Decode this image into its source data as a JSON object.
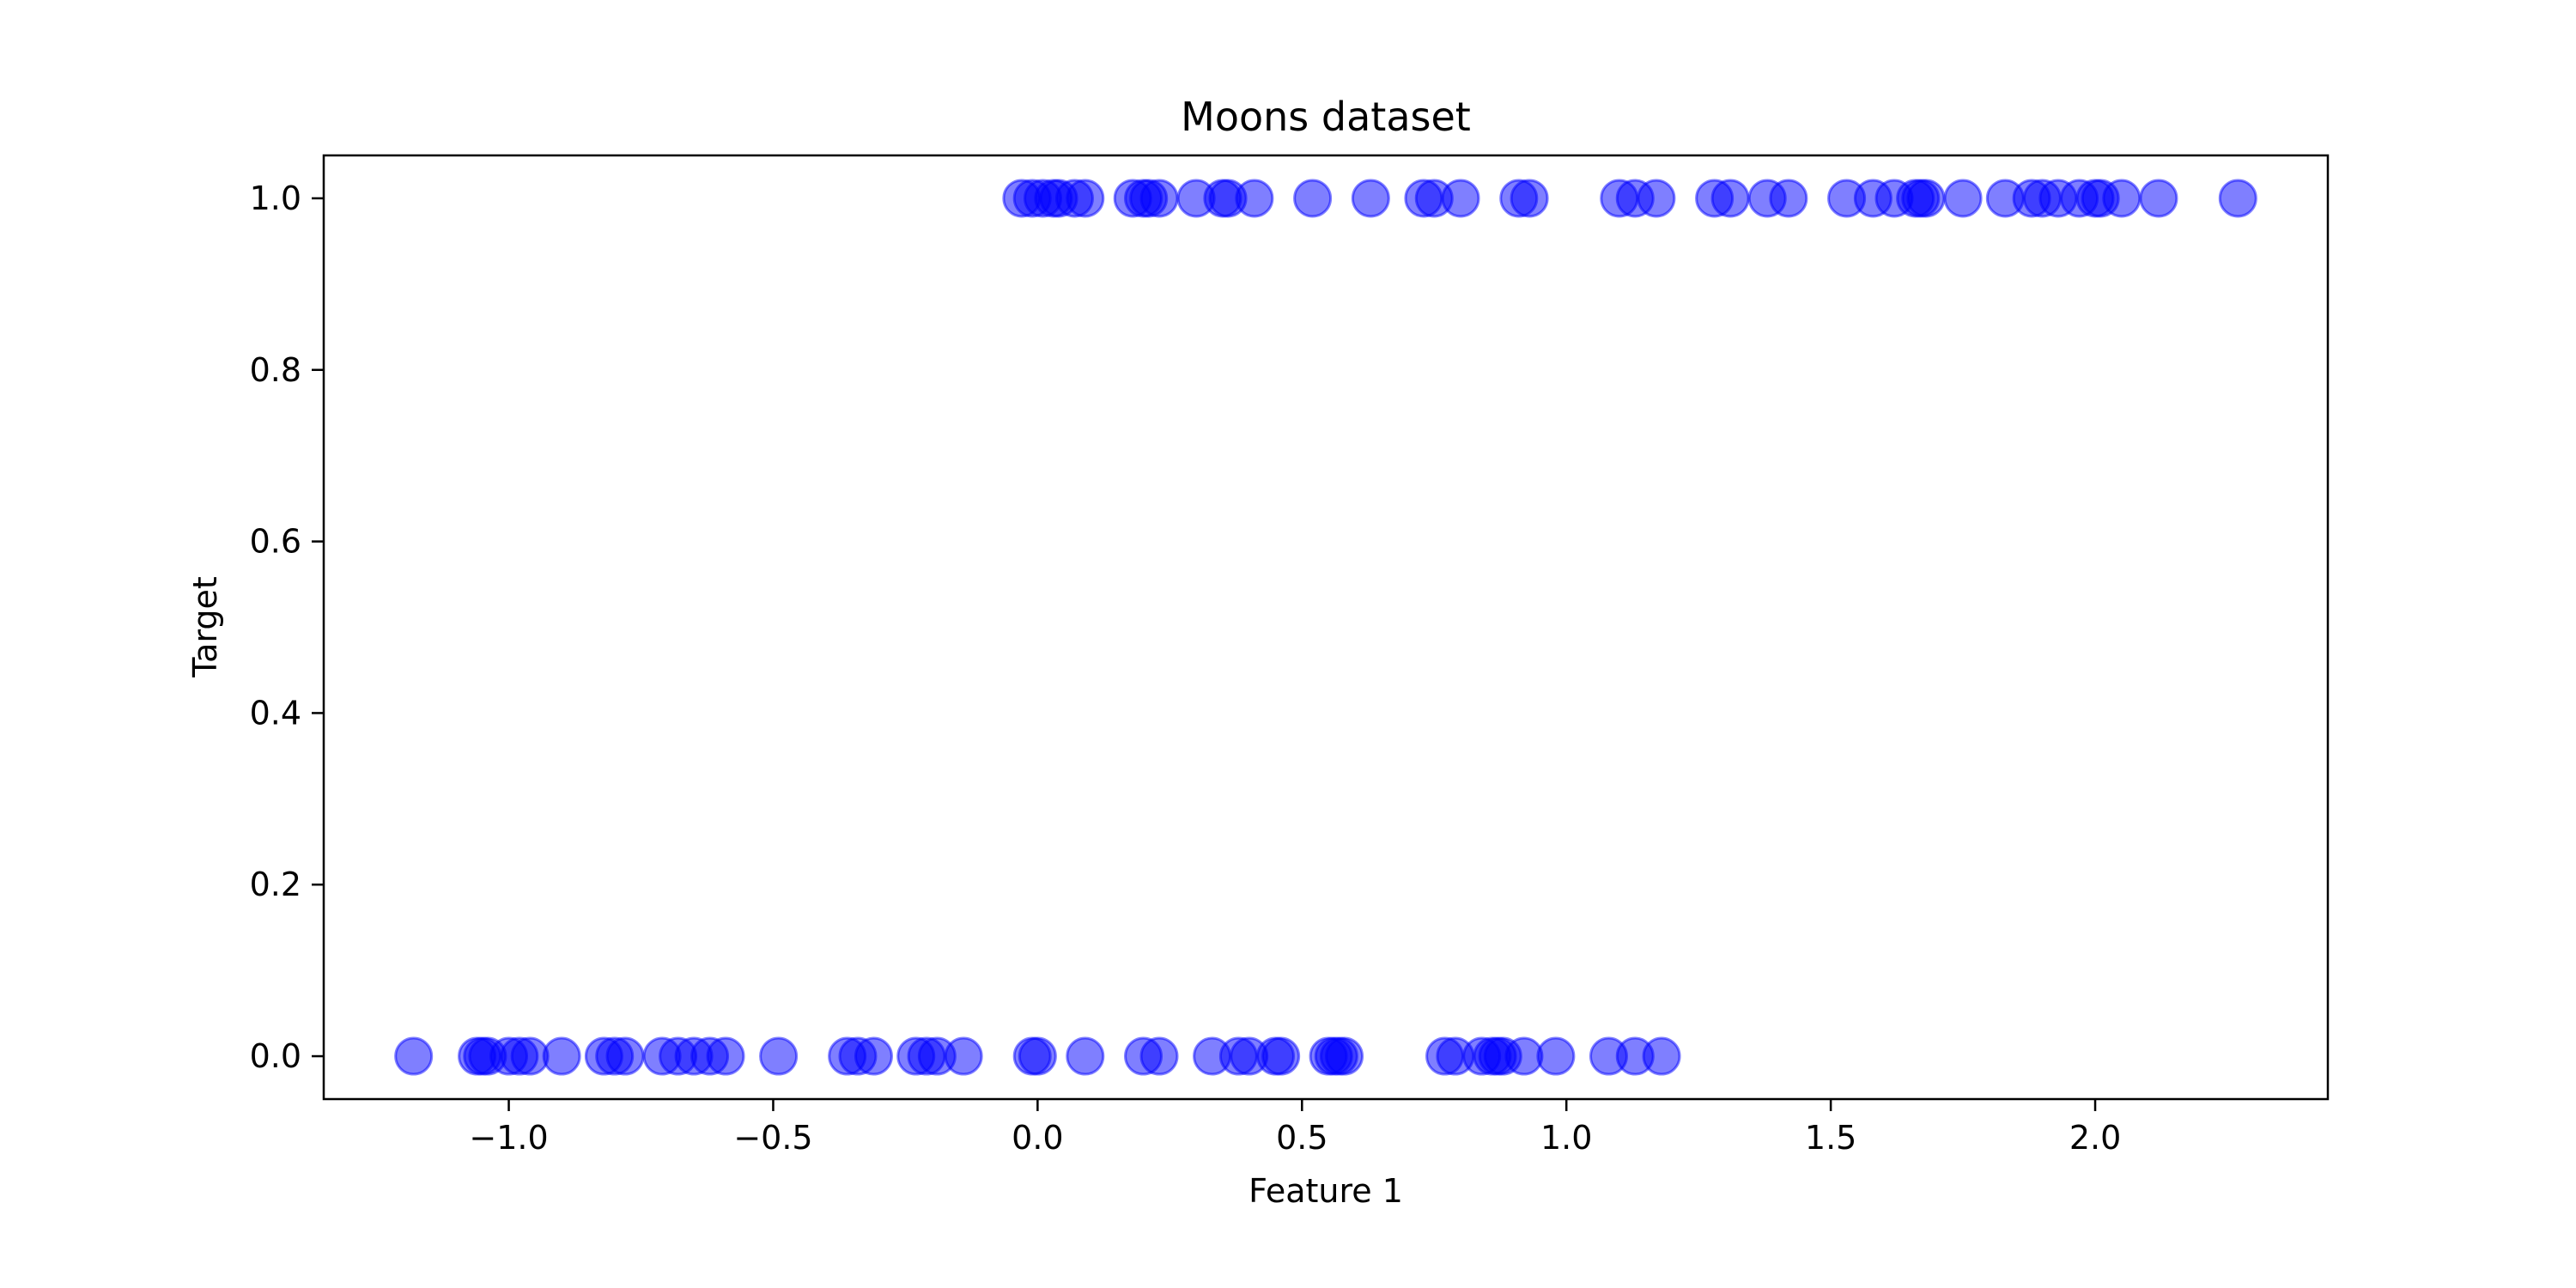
{
  "chart_data": {
    "type": "scatter",
    "title": "Moons dataset",
    "xlabel": "Feature 1",
    "ylabel": "Target",
    "xlim": [
      -1.35,
      2.44
    ],
    "ylim": [
      -0.05,
      1.05
    ],
    "xticks": [
      -1.0,
      -0.5,
      0.0,
      0.5,
      1.0,
      1.5,
      2.0
    ],
    "xtick_labels": [
      "−1.0",
      "−0.5",
      "0.0",
      "0.5",
      "1.0",
      "1.5",
      "2.0"
    ],
    "yticks": [
      0.0,
      0.2,
      0.4,
      0.6,
      0.8,
      1.0
    ],
    "ytick_labels": [
      "0.0",
      "0.2",
      "0.4",
      "0.6",
      "0.8",
      "1.0"
    ],
    "grid": false,
    "marker_color": "#0000ff",
    "marker_alpha": 0.5,
    "series": [
      {
        "values": [
          {
            "x": -0.03,
            "y": 1
          },
          {
            "x": -0.01,
            "y": 1
          },
          {
            "x": 0.01,
            "y": 1
          },
          {
            "x": 0.03,
            "y": 1
          },
          {
            "x": 0.04,
            "y": 1
          },
          {
            "x": 0.07,
            "y": 1
          },
          {
            "x": 0.09,
            "y": 1
          },
          {
            "x": 0.18,
            "y": 1
          },
          {
            "x": 0.2,
            "y": 1
          },
          {
            "x": 0.21,
            "y": 1
          },
          {
            "x": 0.23,
            "y": 1
          },
          {
            "x": 0.3,
            "y": 1
          },
          {
            "x": 0.35,
            "y": 1
          },
          {
            "x": 0.36,
            "y": 1
          },
          {
            "x": 0.41,
            "y": 1
          },
          {
            "x": 0.52,
            "y": 1
          },
          {
            "x": 0.63,
            "y": 1
          },
          {
            "x": 0.73,
            "y": 1
          },
          {
            "x": 0.75,
            "y": 1
          },
          {
            "x": 0.8,
            "y": 1
          },
          {
            "x": 0.91,
            "y": 1
          },
          {
            "x": 0.93,
            "y": 1
          },
          {
            "x": 1.1,
            "y": 1
          },
          {
            "x": 1.13,
            "y": 1
          },
          {
            "x": 1.17,
            "y": 1
          },
          {
            "x": 1.28,
            "y": 1
          },
          {
            "x": 1.31,
            "y": 1
          },
          {
            "x": 1.38,
            "y": 1
          },
          {
            "x": 1.42,
            "y": 1
          },
          {
            "x": 1.53,
            "y": 1
          },
          {
            "x": 1.58,
            "y": 1
          },
          {
            "x": 1.62,
            "y": 1
          },
          {
            "x": 1.66,
            "y": 1
          },
          {
            "x": 1.67,
            "y": 1
          },
          {
            "x": 1.68,
            "y": 1
          },
          {
            "x": 1.75,
            "y": 1
          },
          {
            "x": 1.83,
            "y": 1
          },
          {
            "x": 1.88,
            "y": 1
          },
          {
            "x": 1.9,
            "y": 1
          },
          {
            "x": 1.93,
            "y": 1
          },
          {
            "x": 1.97,
            "y": 1
          },
          {
            "x": 2.0,
            "y": 1
          },
          {
            "x": 2.01,
            "y": 1
          },
          {
            "x": 2.05,
            "y": 1
          },
          {
            "x": 2.12,
            "y": 1
          },
          {
            "x": 2.27,
            "y": 1
          },
          {
            "x": -1.18,
            "y": 0
          },
          {
            "x": -1.06,
            "y": 0
          },
          {
            "x": -1.05,
            "y": 0
          },
          {
            "x": -1.04,
            "y": 0
          },
          {
            "x": -1.0,
            "y": 0
          },
          {
            "x": -0.98,
            "y": 0
          },
          {
            "x": -0.96,
            "y": 0
          },
          {
            "x": -0.9,
            "y": 0
          },
          {
            "x": -0.82,
            "y": 0
          },
          {
            "x": -0.8,
            "y": 0
          },
          {
            "x": -0.78,
            "y": 0
          },
          {
            "x": -0.71,
            "y": 0
          },
          {
            "x": -0.68,
            "y": 0
          },
          {
            "x": -0.65,
            "y": 0
          },
          {
            "x": -0.62,
            "y": 0
          },
          {
            "x": -0.59,
            "y": 0
          },
          {
            "x": -0.49,
            "y": 0
          },
          {
            "x": -0.36,
            "y": 0
          },
          {
            "x": -0.34,
            "y": 0
          },
          {
            "x": -0.31,
            "y": 0
          },
          {
            "x": -0.23,
            "y": 0
          },
          {
            "x": -0.21,
            "y": 0
          },
          {
            "x": -0.19,
            "y": 0
          },
          {
            "x": -0.14,
            "y": 0
          },
          {
            "x": -0.01,
            "y": 0
          },
          {
            "x": 0.0,
            "y": 0
          },
          {
            "x": 0.09,
            "y": 0
          },
          {
            "x": 0.2,
            "y": 0
          },
          {
            "x": 0.23,
            "y": 0
          },
          {
            "x": 0.33,
            "y": 0
          },
          {
            "x": 0.38,
            "y": 0
          },
          {
            "x": 0.4,
            "y": 0
          },
          {
            "x": 0.45,
            "y": 0
          },
          {
            "x": 0.46,
            "y": 0
          },
          {
            "x": 0.55,
            "y": 0
          },
          {
            "x": 0.56,
            "y": 0
          },
          {
            "x": 0.57,
            "y": 0
          },
          {
            "x": 0.58,
            "y": 0
          },
          {
            "x": 0.77,
            "y": 0
          },
          {
            "x": 0.79,
            "y": 0
          },
          {
            "x": 0.84,
            "y": 0
          },
          {
            "x": 0.86,
            "y": 0
          },
          {
            "x": 0.87,
            "y": 0
          },
          {
            "x": 0.88,
            "y": 0
          },
          {
            "x": 0.92,
            "y": 0
          },
          {
            "x": 0.98,
            "y": 0
          },
          {
            "x": 1.08,
            "y": 0
          },
          {
            "x": 1.13,
            "y": 0
          },
          {
            "x": 1.18,
            "y": 0
          }
        ]
      }
    ]
  }
}
